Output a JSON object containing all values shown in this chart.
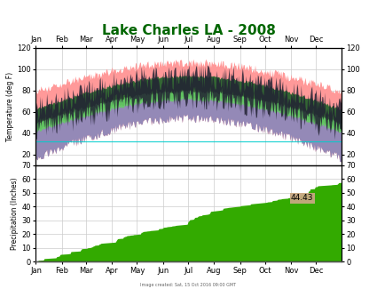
{
  "title": "Lake Charles LA - 2008",
  "title_color": "#006600",
  "title_fontsize": 11,
  "months": [
    "Jan",
    "Feb",
    "Mar",
    "Apr",
    "May",
    "Jun",
    "Jul",
    "Aug",
    "Sep",
    "Oct",
    "Nov",
    "Dec"
  ],
  "month_ticks": [
    0,
    31,
    60,
    91,
    121,
    152,
    182,
    213,
    244,
    274,
    305,
    335
  ],
  "days_in_year": 366,
  "temp_ylim": [
    10,
    120
  ],
  "temp_yticks": [
    20,
    40,
    60,
    80,
    100,
    120
  ],
  "precip_ylim": [
    0,
    70
  ],
  "precip_yticks": [
    0,
    10,
    20,
    30,
    40,
    50,
    60,
    70
  ],
  "temp_ylabel": "Temperature (deg F)",
  "precip_ylabel": "Precipitation (Inches)",
  "freezing_line": 32,
  "precip_annotation": "44.43",
  "grid_color": "#cccccc",
  "background_color": "#ffffff",
  "temp_record_high_color": "#ff9999",
  "temp_record_low_color": "#8888bb",
  "temp_normal_high_color": "#336633",
  "temp_normal_low_color": "#66cc66",
  "temp_actual_color": "#222233",
  "precip_actual_color": "#33aa00",
  "precip_normal_color": "#aa8866",
  "freezing_color": "#00cccc",
  "separator_color": "#555555"
}
